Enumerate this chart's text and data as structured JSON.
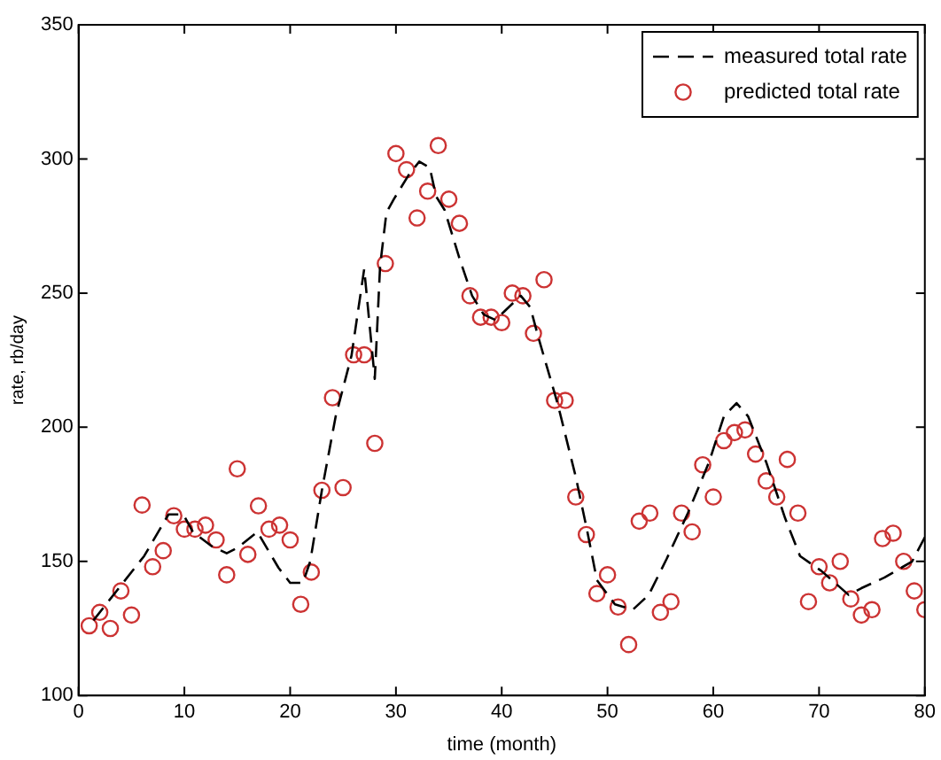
{
  "chart_data": {
    "type": "line",
    "xlabel": "time (month)",
    "ylabel": "rate, rb/day",
    "xlim": [
      0,
      80
    ],
    "xticks": [
      0,
      10,
      20,
      30,
      40,
      50,
      60,
      70,
      80
    ],
    "ylim": [
      100,
      350
    ],
    "yticks": [
      100,
      150,
      200,
      250,
      300,
      350
    ],
    "grid": false,
    "legend": "top right",
    "series": [
      {
        "name": "measured total rate",
        "color": "#000000",
        "line_style": "dashed",
        "marker": "none",
        "x": [
          1.4,
          3.8,
          6.2,
          8.5,
          9.9,
          10.8,
          12.6,
          14,
          15,
          16.9,
          18.9,
          20,
          21.2,
          21.9,
          23,
          24.3,
          25.8,
          27,
          28,
          28.5,
          29.1,
          29.8,
          31.2,
          32.2,
          33.2,
          33.8,
          34.6,
          36,
          37.2,
          38.3,
          39.4,
          41.8,
          42.7,
          43.5,
          45.3,
          47,
          48.1,
          49,
          50.7,
          52.4,
          53.9,
          55.6,
          57.6,
          59.6,
          61,
          62.2,
          63.3,
          65,
          66.8,
          68.2,
          70.2,
          72.8,
          74,
          76.2,
          78.8,
          80
        ],
        "values": [
          128,
          140,
          152,
          167.5,
          167.5,
          161,
          155.6,
          153,
          155,
          161,
          147.6,
          142,
          142,
          150,
          176.5,
          204,
          226.7,
          259,
          218,
          260,
          280,
          285,
          294,
          299,
          296.7,
          286,
          281,
          263,
          249,
          242,
          240,
          249,
          244.7,
          233,
          208.6,
          181.5,
          161,
          143,
          134,
          132,
          137.5,
          151,
          168,
          187,
          204,
          209,
          204,
          187,
          166,
          152,
          146.5,
          137.5,
          140,
          144,
          150,
          159
        ]
      },
      {
        "name": "predicted total rate",
        "type": "scatter",
        "color": "#cc3333",
        "marker": "circle",
        "x": [
          1,
          2,
          3,
          4,
          5,
          6,
          7,
          8,
          9,
          10,
          11,
          12,
          13,
          14,
          15,
          16,
          17,
          18,
          19,
          20,
          21,
          22,
          23,
          24,
          25,
          26,
          27,
          28,
          29,
          30,
          31,
          32,
          33,
          34,
          35,
          36,
          37,
          38,
          39,
          40,
          41,
          42,
          43,
          44,
          45,
          46,
          47,
          48,
          49,
          50,
          51,
          52,
          53,
          54,
          55,
          56,
          57,
          58,
          59,
          60,
          61,
          62,
          63,
          64,
          65,
          66,
          67,
          68,
          69,
          70,
          71,
          72,
          73,
          74,
          75,
          76,
          77,
          78,
          79,
          80
        ],
        "values": [
          126,
          131,
          125,
          139,
          130,
          171,
          148,
          154,
          167,
          162,
          162,
          163.5,
          158,
          145,
          184.5,
          152.6,
          170.7,
          162,
          163.5,
          158,
          134,
          146,
          176.5,
          211,
          177.5,
          227,
          227,
          194,
          261,
          302,
          296,
          278,
          288,
          305,
          285,
          276,
          249,
          241,
          241,
          239,
          250,
          249,
          235,
          255,
          210,
          210,
          174,
          160,
          138,
          145,
          133,
          119,
          165,
          168,
          131,
          135,
          168,
          161,
          186,
          174,
          195,
          198,
          199,
          190,
          180,
          174,
          188,
          168,
          135,
          148,
          142,
          150,
          136,
          130,
          132,
          158.5,
          160.5,
          150,
          139,
          132
        ]
      }
    ]
  }
}
